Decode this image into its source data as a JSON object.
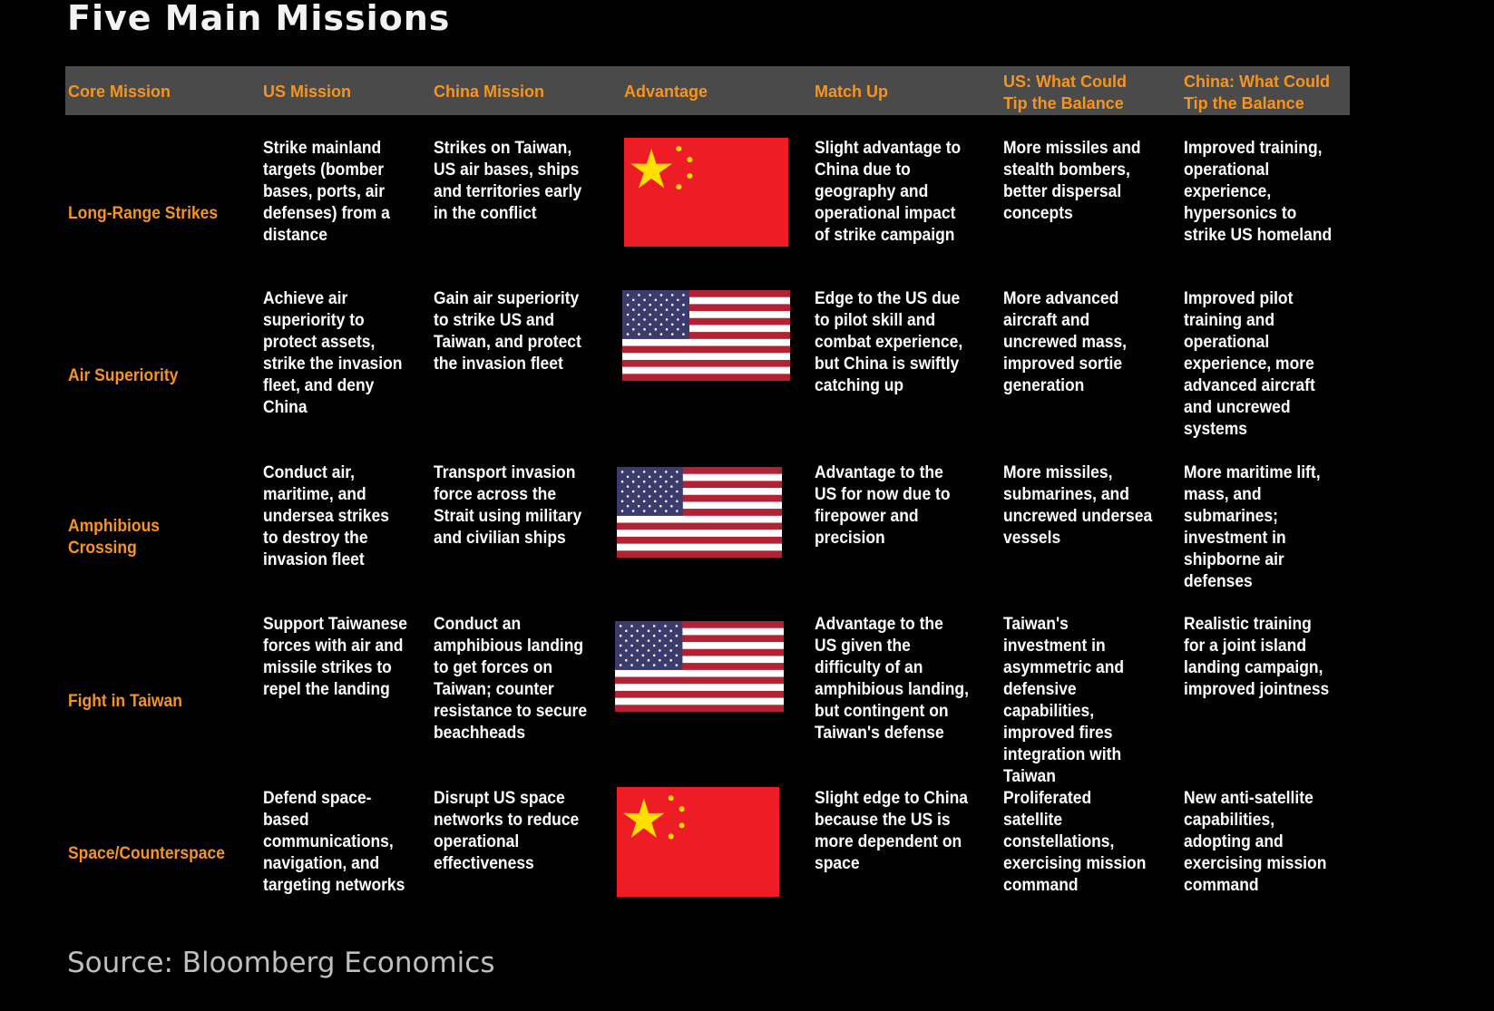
{
  "title": "Five Main Missions",
  "columns": [
    "Core Mission",
    "US Mission",
    "China Mission",
    "Advantage",
    "Match Up",
    "US: What Could Tip the Balance",
    "China: What Could Tip the Balance"
  ],
  "colors": {
    "header_text": "#f7941d",
    "header_bg": "#4a4a4a",
    "china_red": "#ee1c25",
    "china_star": "#ffde00",
    "us_red": "#b22234",
    "us_blue": "#3c3b6e"
  },
  "rows": [
    {
      "core": "Long-Range Strikes",
      "us": "Strike mainland targets (bomber bases, ports, air defenses) from a distance",
      "china": "Strikes on Taiwan, US air bases, ships and territories early in the conflict",
      "advantage": "china-flag",
      "matchup": "Slight advantage to China due to geography and operational impact of strike campaign",
      "us_tip": "More missiles and stealth bombers, better dispersal concepts",
      "china_tip": "Improved training, operational experience, hypersonics to strike US homeland"
    },
    {
      "core": "Air Superiority",
      "us": "Achieve air superiority to protect assets, strike the invasion fleet, and deny China",
      "china": "Gain air superiority to strike US and Taiwan, and protect the invasion fleet",
      "advantage": "us-flag",
      "matchup": "Edge to the US due to pilot skill and combat experience, but China is swiftly catching up",
      "us_tip": "More advanced aircraft and uncrewed mass, improved sortie generation",
      "china_tip": "Improved pilot training and operational experience, more advanced aircraft and uncrewed systems"
    },
    {
      "core": "Amphibious Crossing",
      "us": "Conduct air, maritime, and undersea strikes to destroy the invasion fleet",
      "china": "Transport invasion force across the Strait using military and civilian ships",
      "advantage": "us-flag",
      "matchup": "Advantage to the US for now due to firepower and precision",
      "us_tip": "More missiles, submarines, and uncrewed undersea vessels",
      "china_tip": "More maritime lift, mass, and submarines; investment in shipborne air defenses"
    },
    {
      "core": "Fight in Taiwan",
      "us": "Support Taiwanese forces with air and missile strikes to repel the landing",
      "china": "Conduct an amphibious landing to get forces on Taiwan; counter resistance to secure beachheads",
      "advantage": "us-flag",
      "matchup": "Advantage to the US given the difficulty of an amphibious landing, but contingent on Taiwan's defense",
      "us_tip": "Taiwan's investment in asymmetric and defensive capabilities, improved fires integration with Taiwan",
      "china_tip": "Realistic training for a joint island landing campaign, improved jointness"
    },
    {
      "core": "Space/Counterspace",
      "us": "Defend space-based communications, navigation, and targeting networks",
      "china": "Disrupt US space networks to reduce operational effectiveness",
      "advantage": "china-flag",
      "matchup": "Slight edge to China because the US is more dependent on space",
      "us_tip": "Proliferated satellite constellations, exercising mission command",
      "china_tip": "New anti-satellite capabilities, adopting and exercising mission command"
    }
  ],
  "source": "Source: Bloomberg Economics"
}
